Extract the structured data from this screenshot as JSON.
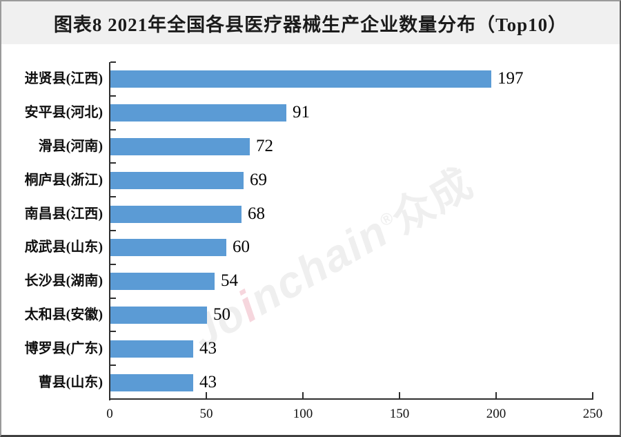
{
  "title": "图表8 2021年全国各县医疗器械生产企业数量分布（Top10）",
  "watermark": {
    "full_text": "Joinchain®众成",
    "pre": "Jo",
    "i": "i",
    "post": "nchain",
    "reg": "®",
    "cn": "众成"
  },
  "colors": {
    "bar": "#5B9BD5",
    "axis": "#2e2e2e",
    "header_bg": "#f0f0f0",
    "title_text": "#1b1b1b"
  },
  "chart_data": {
    "type": "bar",
    "orientation": "horizontal",
    "title": "图表8 2021年全国各县医疗器械生产企业数量分布（Top10）",
    "categories": [
      "进贤县(江西)",
      "安平县(河北)",
      "滑县(河南)",
      "桐庐县(浙江)",
      "南昌县(江西)",
      "成武县(山东)",
      "长沙县(湖南)",
      "太和县(安徽)",
      "博罗县(广东)",
      "曹县(山东)"
    ],
    "values": [
      197,
      91,
      72,
      69,
      68,
      60,
      54,
      50,
      43,
      43
    ],
    "data_labels": [
      197,
      91,
      72,
      69,
      68,
      60,
      54,
      50,
      43,
      43
    ],
    "xlabel": "",
    "ylabel": "",
    "xlim": [
      0,
      250
    ],
    "x_ticks": [
      0,
      50,
      100,
      150,
      200,
      250
    ],
    "grid": false,
    "legend": false,
    "bar_color": "#5B9BD5"
  }
}
